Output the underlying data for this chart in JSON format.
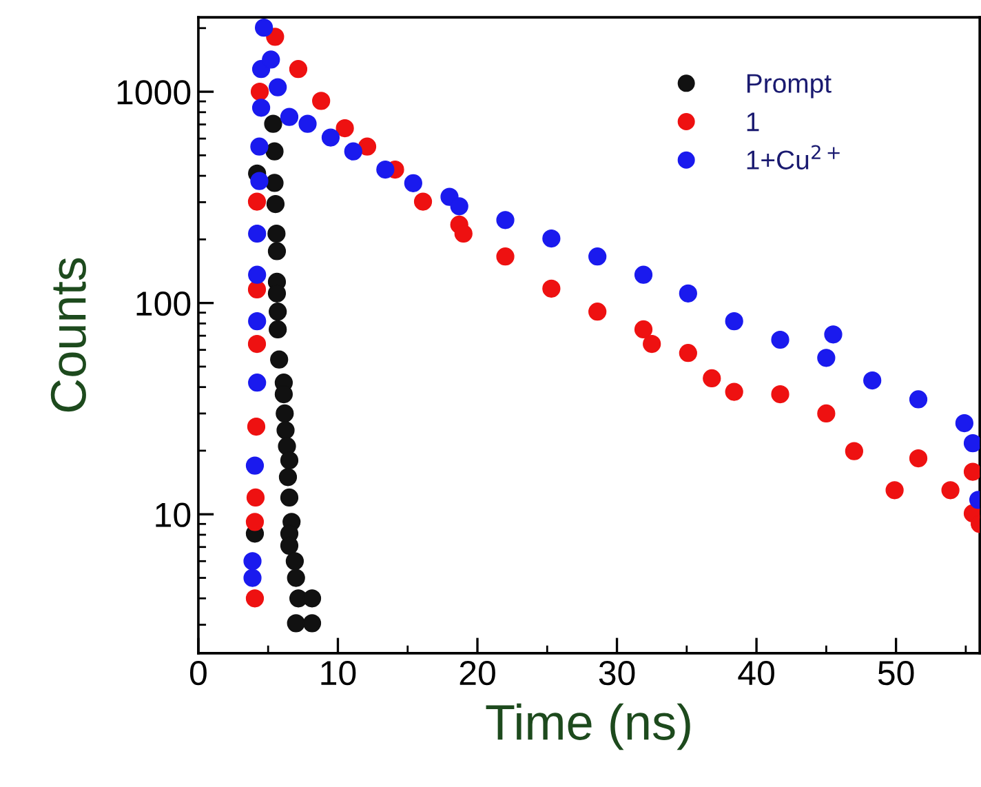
{
  "chart_data": {
    "type": "scatter",
    "xlabel": "Time (ns)",
    "ylabel": "Counts",
    "log": "y",
    "xlim": [
      0,
      56
    ],
    "ylim": [
      2.2,
      2250
    ],
    "xticks": [
      0,
      10,
      20,
      30,
      40,
      50
    ],
    "yticks": [
      10,
      100,
      1000
    ],
    "grid": false,
    "legend": "top right",
    "marker": "circle",
    "series": [
      {
        "name": "Prompt",
        "color": "#111111",
        "x": [
          4.05,
          4.21,
          5.36,
          5.46,
          5.46,
          5.53,
          5.6,
          5.63,
          5.63,
          5.63,
          5.69,
          5.69,
          5.79,
          6.12,
          6.12,
          6.19,
          6.25,
          6.35,
          6.52,
          6.42,
          6.52,
          6.68,
          6.52,
          6.52,
          6.91,
          7.0,
          7.17,
          8.15,
          7.0,
          8.15
        ],
        "values": [
          8.1,
          410,
          705,
          522,
          370,
          294,
          213,
          176,
          126,
          111,
          91,
          75,
          54,
          42,
          37,
          30,
          25,
          21,
          18,
          15,
          12,
          9.2,
          8.1,
          7.1,
          6.0,
          5.0,
          4.0,
          4.0,
          3.05,
          3.05
        ]
      },
      {
        "name": "1",
        "color": "#ee1111",
        "x": [
          4.05,
          4.05,
          4.1,
          4.15,
          4.2,
          4.2,
          4.2,
          4.4,
          5.5,
          7.16,
          8.8,
          10.5,
          12.1,
          14.1,
          16.1,
          18.7,
          19.0,
          22.0,
          25.3,
          28.6,
          31.9,
          32.5,
          35.1,
          36.8,
          38.4,
          41.7,
          45.0,
          47.0,
          49.9,
          51.6,
          53.9,
          55.5,
          55.5,
          56.0
        ],
        "values": [
          4.0,
          9.2,
          12,
          26,
          64,
          116,
          302,
          1000,
          1820,
          1280,
          905,
          672,
          550,
          428,
          302,
          235,
          213,
          166,
          117,
          91,
          75,
          64,
          58,
          44,
          38,
          37,
          30,
          19.9,
          13,
          18.4,
          13,
          10.1,
          15.9,
          9
        ]
      },
      {
        "name": "1+Cu$^{2+}$",
        "color": "#1a1aee",
        "x": [
          3.88,
          3.88,
          4.05,
          4.21,
          4.21,
          4.21,
          4.21,
          4.37,
          4.37,
          4.5,
          4.5,
          4.7,
          5.2,
          5.69,
          6.52,
          7.83,
          9.48,
          11.1,
          13.4,
          15.4,
          18.0,
          18.7,
          22.0,
          25.3,
          28.6,
          31.9,
          35.1,
          38.4,
          41.7,
          45.0,
          45.5,
          48.3,
          51.6,
          54.9,
          55.5,
          55.9
        ],
        "values": [
          5.0,
          6.0,
          17,
          42,
          82,
          136,
          213,
          378,
          550,
          840,
          1280,
          2010,
          1420,
          1050,
          760,
          705,
          607,
          522,
          428,
          369,
          318,
          287,
          247,
          202,
          166,
          136,
          111,
          82,
          67,
          55,
          71,
          43,
          35,
          27,
          21.7,
          11.7
        ]
      }
    ]
  }
}
